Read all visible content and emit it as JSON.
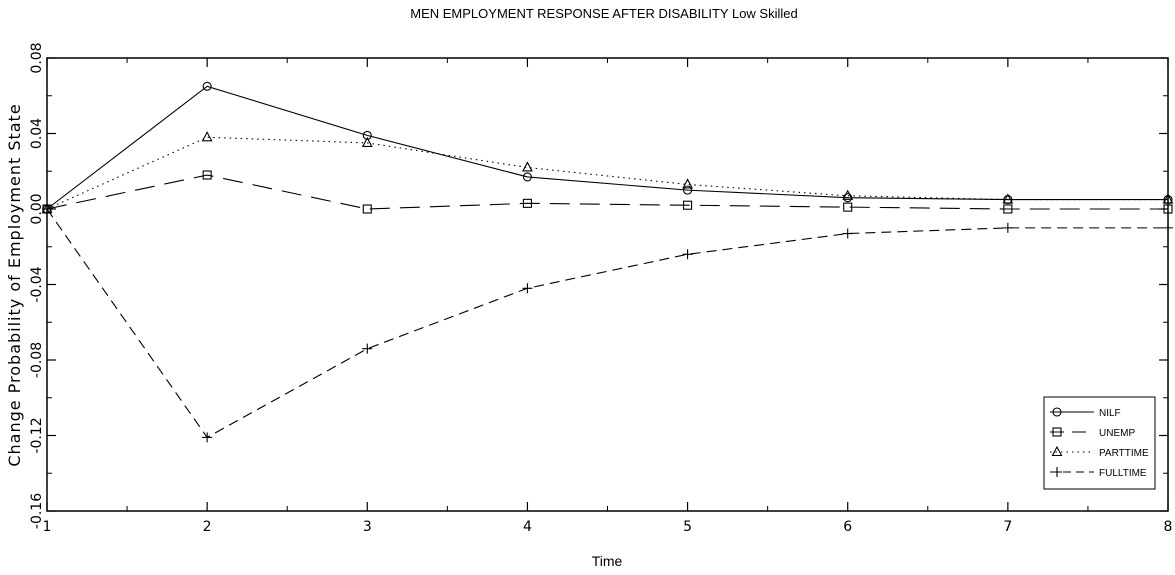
{
  "chart_data": {
    "type": "line",
    "title": "MEN EMPLOYMENT RESPONSE AFTER DISABILITY Low Skilled",
    "xlabel": "Time",
    "ylabel": "Change Probability of Employment State",
    "xlim": [
      1,
      8
    ],
    "ylim": [
      -0.16,
      0.08
    ],
    "x_ticks": [
      "1",
      "2",
      "3",
      "4",
      "5",
      "6",
      "7",
      "8"
    ],
    "y_ticks": [
      "-0.16",
      "-0.12",
      "-0.08",
      "-0.04",
      "0.00",
      "0.04",
      "0.08"
    ],
    "legend_position": "bottom-right",
    "grid": false,
    "x": [
      1,
      2,
      3,
      4,
      5,
      6,
      7,
      8
    ],
    "series": [
      {
        "name": "NILF",
        "marker": "circle",
        "dash": "solid",
        "values": [
          0.0,
          0.065,
          0.039,
          0.017,
          0.01,
          0.006,
          0.005,
          0.005
        ]
      },
      {
        "name": "UNEMP",
        "marker": "square",
        "dash": "long-dash",
        "values": [
          0.0,
          0.018,
          0.0,
          0.003,
          0.002,
          0.001,
          0.0,
          0.0
        ]
      },
      {
        "name": "PARTTIME",
        "marker": "triangle",
        "dash": "dotted",
        "values": [
          0.0,
          0.038,
          0.035,
          0.022,
          0.013,
          0.007,
          0.005,
          0.005
        ]
      },
      {
        "name": "FULLTIME",
        "marker": "plus",
        "dash": "dashed",
        "values": [
          0.0,
          -0.121,
          -0.074,
          -0.042,
          -0.024,
          -0.013,
          -0.01,
          -0.01
        ]
      }
    ]
  }
}
